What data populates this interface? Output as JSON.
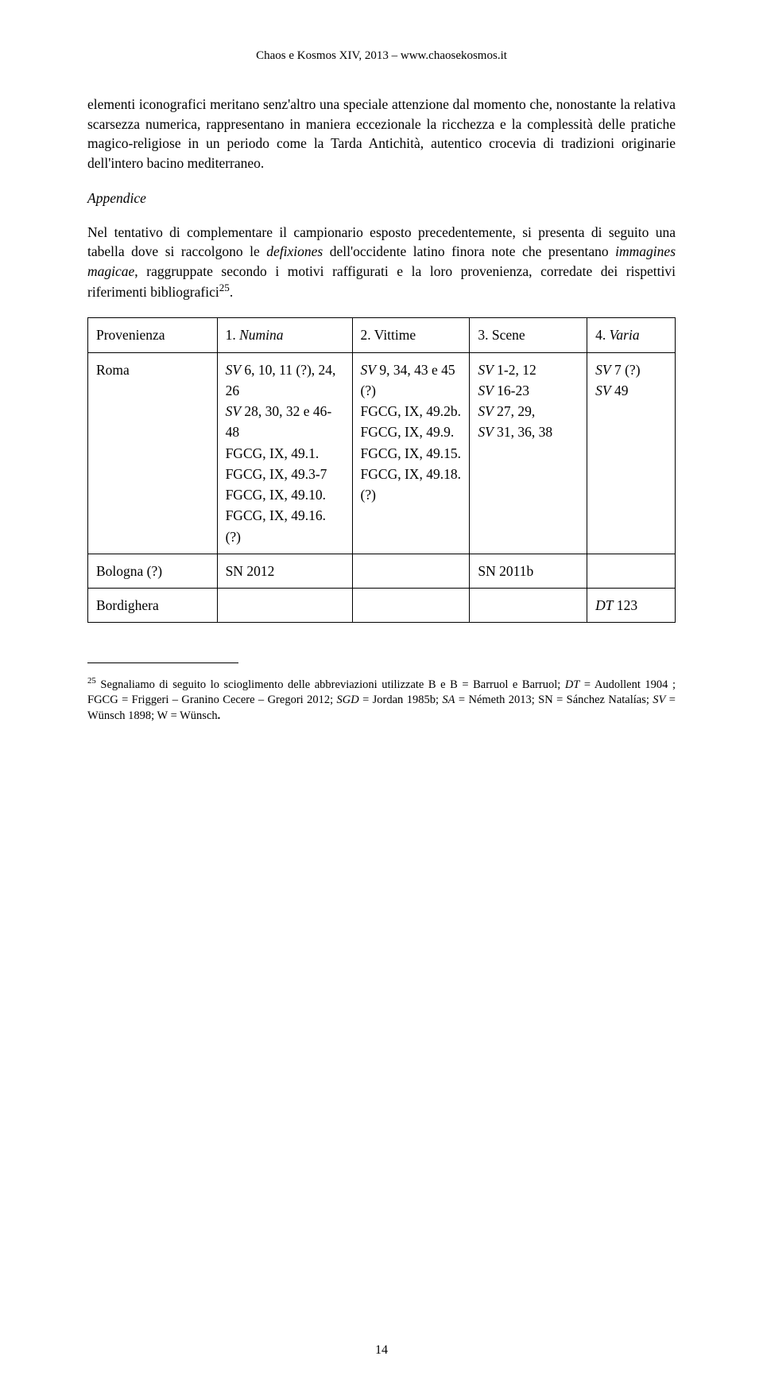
{
  "header": "Chaos e Kosmos XIV, 2013 – www.chaosekosmos.it",
  "para1": "elementi iconografici meritano senz'altro una speciale attenzione dal momento che, nonostante la relativa scarsezza numerica, rappresentano in maniera eccezionale la ricchezza e la complessità delle pratiche magico-religiose in un periodo come la Tarda Antichità, autentico crocevia di tradizioni originarie dell'intero bacino mediterraneo.",
  "appendix_title": "Appendice",
  "para2_part1": "Nel tentativo di complementare il campionario esposto precedentemente, si presenta di seguito una tabella dove si raccolgono le ",
  "para2_italic1": "defixiones",
  "para2_part2": " dell'occidente latino finora note che presentano ",
  "para2_italic2": "immagines magicae",
  "para2_part3": ", raggruppate secondo i motivi raffigurati e la loro provenienza, corredate dei rispettivi riferimenti bibliografici",
  "para2_sup": "25",
  "para2_end": ".",
  "table": {
    "header": {
      "c0": "Provenienza",
      "c1_prefix": "1. ",
      "c1_italic": "Numina",
      "c2": "2. Vittime",
      "c3": "3. Scene",
      "c4_prefix": "4. ",
      "c4_italic": "Varia"
    },
    "row_roma": {
      "c0": "Roma",
      "c1_html": "<span class=\"italic\">SV</span> 6, 10, 11 (?), 24, 26<br><span class=\"italic\">SV</span> 28, 30, 32 e 46-48<br>FGCG, IX, 49.1.<br>FGCG, IX, 49.3-7<br>FGCG, IX, 49.10.<br>FGCG, IX, 49.16. (?)",
      "c2_html": "<span class=\"italic\">SV</span> 9, 34, 43 e 45 (?)<br>FGCG, IX, 49.2b.<br>FGCG, IX, 49.9.<br>FGCG, IX, 49.15.<br>FGCG, IX, 49.18. (?)",
      "c3_html": "<span class=\"italic\">SV</span> 1-2, 12<br><span class=\"italic\">SV</span> 16-23<br><span class=\"italic\">SV</span> 27, 29,<br><span class=\"italic\">SV</span> 31, 36, 38",
      "c4_html": "<span class=\"italic\">SV</span> 7 (?)<br><span class=\"italic\">SV</span> 49"
    },
    "row_bologna": {
      "c0": "Bologna (?)",
      "c1": "SN 2012",
      "c2": "",
      "c3": "SN 2011b",
      "c4": ""
    },
    "row_bordighera": {
      "c0": "Bordighera",
      "c1": "",
      "c2": "",
      "c3": "",
      "c4_html": "<span class=\"italic\">DT</span> 123"
    }
  },
  "footnote_num": "25",
  "footnote_text_part1": " Segnaliamo di seguito lo scioglimento delle abbreviazioni utilizzate B e B = Barruol e Barruol; ",
  "footnote_italic1": "DT",
  "footnote_text_part2": " = Audollent 1904 ; FGCG = Friggeri – Granino Cecere – Gregori 2012; ",
  "footnote_italic2": "SGD",
  "footnote_text_part3": " = Jordan 1985b; ",
  "footnote_italic3": "SA",
  "footnote_text_part4": " = Németh 2013; SN = Sánchez Natalías; ",
  "footnote_italic4": "SV",
  "footnote_text_part5": " = Wünsch 1898; W = Wünsch",
  "footnote_bold_period": ".",
  "page_number": "14"
}
